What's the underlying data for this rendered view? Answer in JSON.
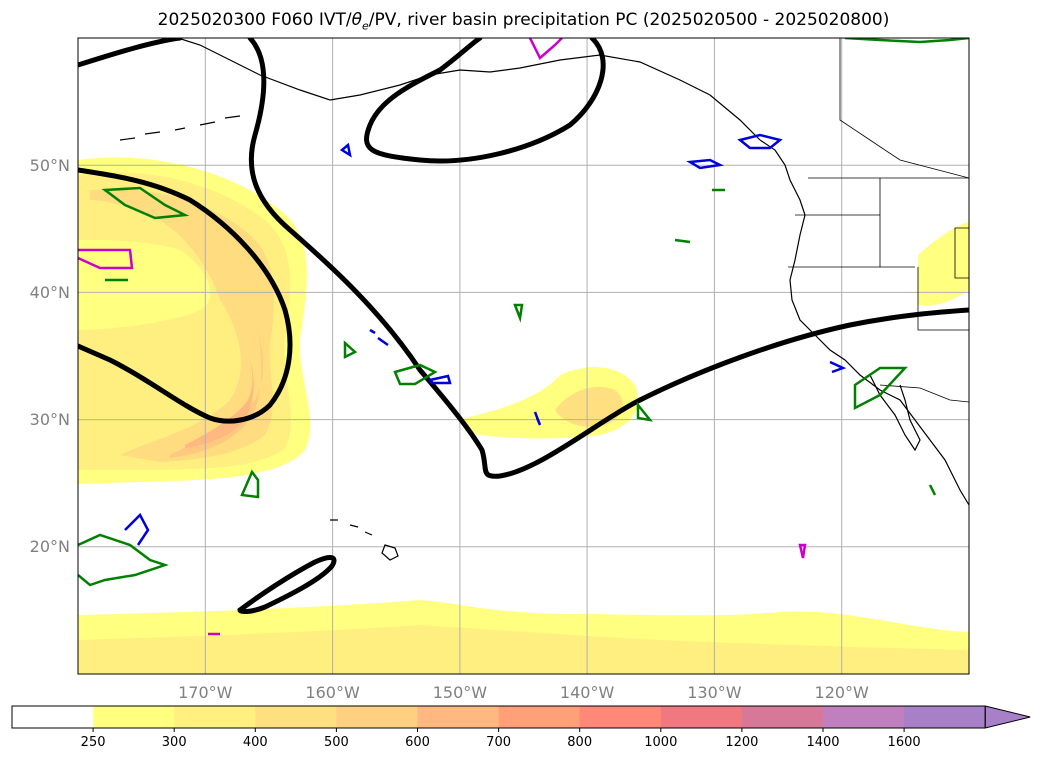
{
  "title": {
    "prefix": "2025020300 F060 IVT/",
    "theta": "θ",
    "theta_sub": "e",
    "suffix": "/PV, river basin precipitation PC (2025020500 - 2025020800)"
  },
  "map": {
    "projection": "PlateCarree",
    "lon_range": [
      -180,
      -110
    ],
    "lat_range": [
      10,
      60
    ],
    "lat_ticks": [
      {
        "value": 20,
        "label": "20°N"
      },
      {
        "value": 30,
        "label": "30°N"
      },
      {
        "value": 40,
        "label": "40°N"
      },
      {
        "value": 50,
        "label": "50°N"
      }
    ],
    "lon_ticks": [
      {
        "value": -170,
        "label": "170°W"
      },
      {
        "value": -160,
        "label": "160°W"
      },
      {
        "value": -150,
        "label": "150°W"
      },
      {
        "value": -140,
        "label": "140°W"
      },
      {
        "value": -130,
        "label": "130°W"
      },
      {
        "value": -120,
        "label": "120°W"
      }
    ],
    "grid": true
  },
  "colorbar": {
    "labels": [
      "250",
      "300",
      "400",
      "500",
      "600",
      "700",
      "800",
      "1000",
      "1200",
      "1400",
      "1600"
    ],
    "colors": [
      "#ffffff",
      "#ffff80",
      "#fff080",
      "#ffe080",
      "#ffd080",
      "#ffb880",
      "#ffa078",
      "#ff8878",
      "#f07880",
      "#d87898",
      "#c080c0",
      "#a880c8"
    ],
    "extend": "max"
  },
  "layer_colors": {
    "ivt_light": "#ffff80",
    "ivt_mid": "#ffe080",
    "ivt_high": "#ffb880",
    "pv_line": "#000000",
    "theta_green": "#008000",
    "theta_blue": "#0000dd",
    "theta_magenta": "#cc00cc"
  }
}
